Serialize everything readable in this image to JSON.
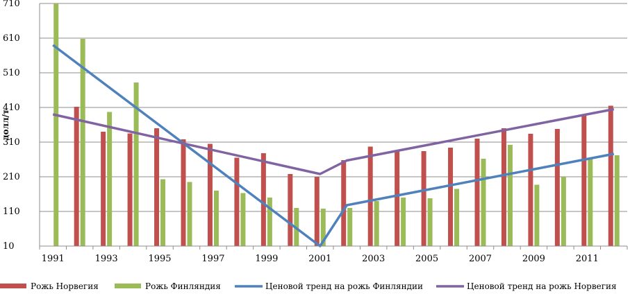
{
  "chart_data": {
    "type": "bar",
    "ylabel": "долл/т",
    "ylim": [
      10,
      710
    ],
    "yticks": [
      10,
      110,
      210,
      310,
      410,
      510,
      610,
      710
    ],
    "grid": true,
    "legend_position": "bottom",
    "categories": [
      "1991",
      "1992",
      "1993",
      "1994",
      "1995",
      "1996",
      "1997",
      "1998",
      "1999",
      "2000",
      "2001",
      "2002",
      "2003",
      "2004",
      "2005",
      "2006",
      "2007",
      "2008",
      "2009",
      "2010",
      "2011",
      "2012"
    ],
    "xtick_labels": [
      "1991",
      "1993",
      "1995",
      "1997",
      "1999",
      "2001",
      "2003",
      "2005",
      "2007",
      "2009",
      "2011"
    ],
    "bar_series": [
      {
        "name": "Рожь Норвегия",
        "color": "#c0504d",
        "values": [
          null,
          412,
          340,
          335,
          350,
          318,
          305,
          265,
          278,
          218,
          210,
          258,
          297,
          287,
          284,
          294,
          320,
          350,
          334,
          348,
          390,
          415
        ]
      },
      {
        "name": "Рожь Финляндия",
        "color": "#9bbb59",
        "values": [
          710,
          608,
          397,
          482,
          203,
          195,
          170,
          163,
          150,
          120,
          118,
          120,
          140,
          150,
          148,
          175,
          262,
          302,
          187,
          210,
          263,
          272
        ]
      }
    ],
    "line_series": [
      {
        "name": "Ценовой тренд на рожь Финляндии",
        "color": "#4f81bd",
        "points": [
          [
            1991,
            590
          ],
          [
            2001,
            10
          ],
          [
            2002,
            128
          ],
          [
            2012,
            276
          ]
        ]
      },
      {
        "name": "Ценовой тренд на рожь Норвегия",
        "color": "#8064a2",
        "points": [
          [
            1991,
            390
          ],
          [
            2001,
            218
          ],
          [
            2002,
            257
          ],
          [
            2012,
            405
          ]
        ]
      }
    ]
  }
}
